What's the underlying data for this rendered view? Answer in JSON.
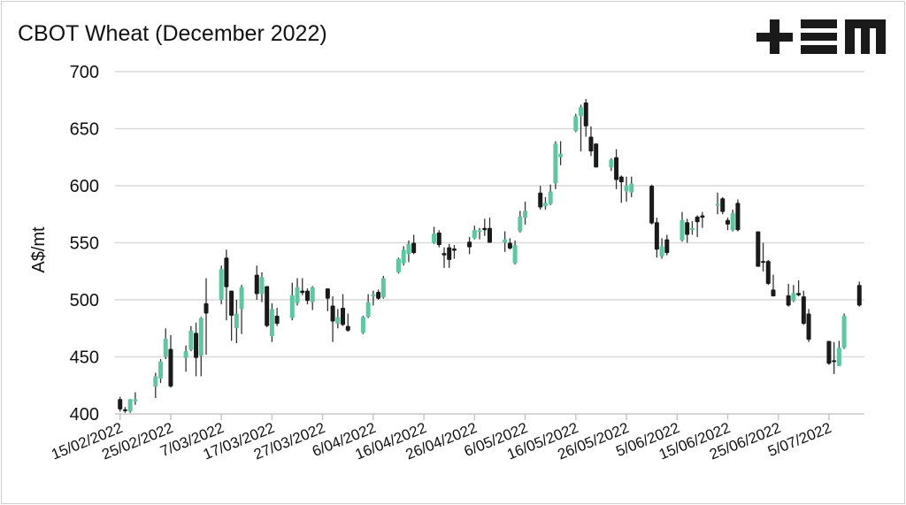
{
  "title": "CBOT Wheat (December 2022)",
  "logo": {
    "text": "+EM",
    "color": "#1a1a1a"
  },
  "chart_data": {
    "type": "candlestick",
    "title": "CBOT Wheat (December 2022)",
    "xlabel": "",
    "ylabel": "A$/mt",
    "ylim": [
      400,
      700
    ],
    "yticks": [
      400,
      450,
      500,
      550,
      600,
      650,
      700
    ],
    "xlim": [
      "2022-02-14",
      "2022-07-12"
    ],
    "xtick_labels": [
      "15/02/2022",
      "25/02/2022",
      "7/03/2022",
      "17/03/2022",
      "27/03/2022",
      "6/04/2022",
      "16/04/2022",
      "26/04/2022",
      "6/05/2022",
      "16/05/2022",
      "26/05/2022",
      "5/06/2022",
      "15/06/2022",
      "25/06/2022",
      "5/07/2022"
    ],
    "xtick_dates": [
      "2022-02-15",
      "2022-02-25",
      "2022-03-07",
      "2022-03-17",
      "2022-03-27",
      "2022-04-06",
      "2022-04-16",
      "2022-04-26",
      "2022-05-06",
      "2022-05-16",
      "2022-05-26",
      "2022-06-05",
      "2022-06-15",
      "2022-06-25",
      "2022-07-05"
    ],
    "grid": "horizontal",
    "colors": {
      "up": "#5cc8a0",
      "down": "#1a1a1a",
      "wick": "#333333",
      "grid": "#d9d9d9"
    },
    "columns": [
      "date",
      "open",
      "high",
      "low",
      "close"
    ],
    "candles": [
      [
        "2022-02-15",
        413,
        415,
        402,
        404
      ],
      [
        "2022-02-16",
        404,
        406,
        401,
        403
      ],
      [
        "2022-02-17",
        402,
        413,
        401,
        413
      ],
      [
        "2022-02-18",
        411,
        419,
        408,
        413
      ],
      [
        "2022-02-22",
        424,
        436,
        414,
        433
      ],
      [
        "2022-02-23",
        431,
        448,
        427,
        446
      ],
      [
        "2022-02-24",
        450,
        475,
        448,
        466
      ],
      [
        "2022-02-25",
        457,
        469,
        423,
        424
      ],
      [
        "2022-02-28",
        449,
        460,
        437,
        455
      ],
      [
        "2022-03-01",
        456,
        477,
        455,
        473
      ],
      [
        "2022-03-02",
        471,
        480,
        433,
        449
      ],
      [
        "2022-03-03",
        451,
        485,
        433,
        484
      ],
      [
        "2022-03-04",
        497,
        519,
        452,
        488
      ],
      [
        "2022-03-07",
        500,
        530,
        496,
        527
      ],
      [
        "2022-03-08",
        537,
        544,
        482,
        511
      ],
      [
        "2022-03-09",
        508,
        508,
        464,
        486
      ],
      [
        "2022-03-10",
        475,
        500,
        462,
        488
      ],
      [
        "2022-03-11",
        492,
        513,
        470,
        511
      ],
      [
        "2022-03-14",
        522,
        530,
        500,
        505
      ],
      [
        "2022-03-15",
        505,
        524,
        498,
        520
      ],
      [
        "2022-03-16",
        512,
        512,
        476,
        477
      ],
      [
        "2022-03-17",
        468,
        497,
        463,
        492
      ],
      [
        "2022-03-18",
        486,
        493,
        477,
        479
      ],
      [
        "2022-03-21",
        484,
        515,
        482,
        504
      ],
      [
        "2022-03-22",
        497,
        519,
        495,
        511
      ],
      [
        "2022-03-23",
        508,
        519,
        504,
        506
      ],
      [
        "2022-03-24",
        508,
        510,
        496,
        499
      ],
      [
        "2022-03-25",
        498,
        512,
        491,
        511
      ],
      [
        "2022-03-28",
        510,
        510,
        490,
        501
      ],
      [
        "2022-03-29",
        495,
        503,
        463,
        481
      ],
      [
        "2022-03-30",
        479,
        492,
        475,
        485
      ],
      [
        "2022-03-31",
        493,
        505,
        477,
        478
      ],
      [
        "2022-04-01",
        477,
        488,
        472,
        473
      ],
      [
        "2022-04-04",
        471,
        486,
        470,
        485
      ],
      [
        "2022-04-05",
        485,
        505,
        484,
        498
      ],
      [
        "2022-04-06",
        503,
        508,
        495,
        505
      ],
      [
        "2022-04-07",
        507,
        509,
        500,
        501
      ],
      [
        "2022-04-08",
        502,
        521,
        501,
        519
      ],
      [
        "2022-04-11",
        524,
        537,
        523,
        536
      ],
      [
        "2022-04-12",
        532,
        547,
        530,
        544
      ],
      [
        "2022-04-13",
        540,
        552,
        533,
        549
      ],
      [
        "2022-04-14",
        550,
        557,
        540,
        541
      ],
      [
        "2022-04-18",
        550,
        564,
        549,
        558
      ],
      [
        "2022-04-19",
        559,
        561,
        546,
        548
      ],
      [
        "2022-04-20",
        541,
        546,
        528,
        539
      ],
      [
        "2022-04-21",
        546,
        549,
        528,
        535
      ],
      [
        "2022-04-22",
        545,
        548,
        536,
        543
      ],
      [
        "2022-04-25",
        551,
        555,
        540,
        546
      ],
      [
        "2022-04-26",
        554,
        565,
        553,
        561
      ],
      [
        "2022-04-27",
        560,
        563,
        553,
        561
      ],
      [
        "2022-04-28",
        563,
        571,
        556,
        561
      ],
      [
        "2022-04-29",
        563,
        572,
        550,
        550
      ],
      [
        "2022-05-02",
        550,
        560,
        542,
        553
      ],
      [
        "2022-05-03",
        550,
        554,
        544,
        545
      ],
      [
        "2022-05-04",
        532,
        552,
        531,
        548
      ],
      [
        "2022-05-05",
        560,
        578,
        559,
        573
      ],
      [
        "2022-05-06",
        572,
        586,
        566,
        578
      ],
      [
        "2022-05-09",
        594,
        600,
        579,
        581
      ],
      [
        "2022-05-10",
        582,
        590,
        579,
        585
      ],
      [
        "2022-05-11",
        584,
        601,
        583,
        595
      ],
      [
        "2022-05-12",
        602,
        639,
        597,
        637
      ],
      [
        "2022-05-13",
        625,
        639,
        618,
        628
      ],
      [
        "2022-05-16",
        648,
        663,
        647,
        661
      ],
      [
        "2022-05-17",
        661,
        671,
        630,
        669
      ],
      [
        "2022-05-18",
        673,
        676,
        643,
        652
      ],
      [
        "2022-05-19",
        643,
        652,
        626,
        630
      ],
      [
        "2022-05-20",
        637,
        637,
        616,
        616
      ],
      [
        "2022-05-23",
        616,
        624,
        613,
        623
      ],
      [
        "2022-05-24",
        625,
        632,
        597,
        605
      ],
      [
        "2022-05-25",
        608,
        609,
        585,
        603
      ],
      [
        "2022-05-26",
        595,
        608,
        586,
        600
      ],
      [
        "2022-05-27",
        594,
        608,
        590,
        602
      ],
      [
        "2022-05-31",
        600,
        601,
        566,
        567
      ],
      [
        "2022-06-01",
        568,
        572,
        537,
        544
      ],
      [
        "2022-06-02",
        538,
        554,
        536,
        547
      ],
      [
        "2022-06-03",
        553,
        557,
        539,
        541
      ],
      [
        "2022-06-06",
        552,
        577,
        551,
        570
      ],
      [
        "2022-06-07",
        568,
        571,
        550,
        557
      ],
      [
        "2022-06-08",
        561,
        569,
        557,
        563
      ],
      [
        "2022-06-09",
        573,
        574,
        555,
        568
      ],
      [
        "2022-06-10",
        574,
        577,
        563,
        572
      ],
      [
        "2022-06-13",
        583,
        594,
        575,
        584
      ],
      [
        "2022-06-14",
        589,
        590,
        575,
        577
      ],
      [
        "2022-06-15",
        570,
        572,
        561,
        566
      ],
      [
        "2022-06-16",
        561,
        579,
        560,
        576
      ],
      [
        "2022-06-17",
        585,
        588,
        560,
        561
      ],
      [
        "2022-06-21",
        560,
        560,
        529,
        529
      ],
      [
        "2022-06-22",
        534,
        550,
        525,
        533
      ],
      [
        "2022-06-23",
        534,
        535,
        513,
        514
      ],
      [
        "2022-06-24",
        509,
        522,
        503,
        503
      ],
      [
        "2022-06-27",
        504,
        514,
        494,
        495
      ],
      [
        "2022-06-28",
        499,
        513,
        498,
        506
      ],
      [
        "2022-06-29",
        506,
        517,
        503,
        504
      ],
      [
        "2022-06-30",
        503,
        508,
        478,
        479
      ],
      [
        "2022-07-01",
        488,
        492,
        463,
        465
      ],
      [
        "2022-07-05",
        464,
        464,
        443,
        444
      ],
      [
        "2022-07-06",
        447,
        463,
        435,
        446
      ],
      [
        "2022-07-07",
        442,
        464,
        442,
        458
      ],
      [
        "2022-07-08",
        458,
        488,
        457,
        486
      ],
      [
        "2022-07-11",
        513,
        516,
        494,
        495
      ]
    ]
  }
}
